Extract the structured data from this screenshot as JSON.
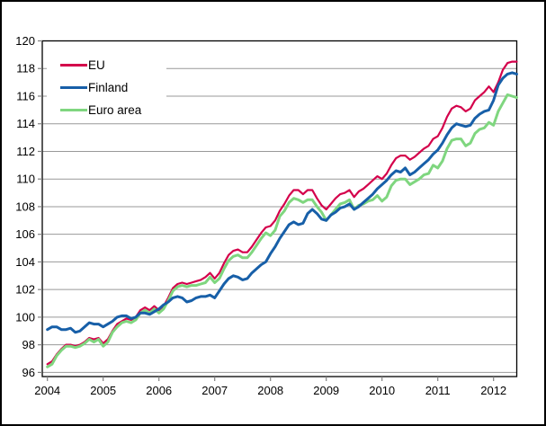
{
  "figure": {
    "background": "#ffffff",
    "border_color": "#000000",
    "gridline_color": "#999999",
    "axis_color": "#000000",
    "tick_color": "#808080"
  },
  "legend": {
    "items": [
      {
        "label": "EU",
        "color": "#d4004b"
      },
      {
        "label": "Finland",
        "color": "#175fa8"
      },
      {
        "label": "Euro area",
        "color": "#7fd67f"
      }
    ]
  },
  "chart_data": {
    "type": "line",
    "frequency": "monthly",
    "x_start": "2004-01",
    "x_end": "2012-06",
    "x_tick_labels": [
      "2004",
      "2005",
      "2006",
      "2007",
      "2008",
      "2009",
      "2010",
      "2011",
      "2012"
    ],
    "y_ticks": [
      96,
      98,
      100,
      102,
      104,
      106,
      108,
      110,
      112,
      114,
      116,
      118,
      120
    ],
    "ylim": [
      95.7,
      120
    ],
    "grid": "horizontal",
    "legend_position": "top-left-inside",
    "series": [
      {
        "name": "EU",
        "color": "#d4004b",
        "values": [
          96.6,
          96.8,
          97.3,
          97.7,
          98.0,
          98.0,
          97.9,
          98.0,
          98.2,
          98.5,
          98.4,
          98.5,
          98.1,
          98.4,
          99.0,
          99.5,
          99.7,
          99.9,
          99.8,
          100.0,
          100.5,
          100.7,
          100.5,
          100.8,
          100.5,
          100.8,
          101.4,
          102.1,
          102.4,
          102.5,
          102.4,
          102.5,
          102.6,
          102.7,
          102.9,
          103.2,
          102.8,
          103.2,
          103.9,
          104.5,
          104.8,
          104.9,
          104.7,
          104.7,
          105.1,
          105.6,
          106.1,
          106.5,
          106.6,
          107.0,
          107.7,
          108.2,
          108.8,
          109.2,
          109.2,
          108.9,
          109.2,
          109.2,
          108.6,
          108.1,
          107.8,
          108.2,
          108.6,
          108.9,
          109.0,
          109.2,
          108.7,
          109.1,
          109.3,
          109.6,
          109.9,
          110.2,
          110.0,
          110.4,
          111.0,
          111.5,
          111.7,
          111.7,
          111.4,
          111.6,
          111.9,
          112.2,
          112.4,
          112.9,
          113.1,
          113.7,
          114.5,
          115.1,
          115.3,
          115.2,
          114.9,
          115.1,
          115.7,
          116.0,
          116.3,
          116.7,
          116.3,
          117.0,
          117.9,
          118.4,
          118.5,
          118.5
        ]
      },
      {
        "name": "Finland",
        "color": "#175fa8",
        "values": [
          99.1,
          99.3,
          99.3,
          99.1,
          99.1,
          99.2,
          98.9,
          99.0,
          99.3,
          99.6,
          99.5,
          99.5,
          99.3,
          99.5,
          99.7,
          100.0,
          100.1,
          100.1,
          99.9,
          100.0,
          100.3,
          100.3,
          100.2,
          100.4,
          100.6,
          100.9,
          101.1,
          101.4,
          101.5,
          101.4,
          101.1,
          101.2,
          101.4,
          101.5,
          101.5,
          101.6,
          101.4,
          101.9,
          102.4,
          102.8,
          103.0,
          102.9,
          102.7,
          102.8,
          103.2,
          103.5,
          103.8,
          104.0,
          104.6,
          105.1,
          105.7,
          106.2,
          106.7,
          106.9,
          106.7,
          106.8,
          107.5,
          107.8,
          107.5,
          107.1,
          107.0,
          107.4,
          107.6,
          107.9,
          108.0,
          108.2,
          107.8,
          108.0,
          108.3,
          108.6,
          108.9,
          109.3,
          109.6,
          109.9,
          110.3,
          110.6,
          110.5,
          110.8,
          110.3,
          110.5,
          110.8,
          111.1,
          111.4,
          111.8,
          112.1,
          112.6,
          113.2,
          113.7,
          114.0,
          113.9,
          113.8,
          113.9,
          114.4,
          114.7,
          114.9,
          115.0,
          115.7,
          116.8,
          117.3,
          117.6,
          117.7,
          117.6
        ]
      },
      {
        "name": "Euro area",
        "color": "#7fd67f",
        "values": [
          96.4,
          96.6,
          97.2,
          97.6,
          97.9,
          97.9,
          97.8,
          97.9,
          98.1,
          98.4,
          98.2,
          98.4,
          97.9,
          98.2,
          98.9,
          99.3,
          99.6,
          99.7,
          99.6,
          99.8,
          100.3,
          100.5,
          100.3,
          100.6,
          100.3,
          100.6,
          101.2,
          101.9,
          102.2,
          102.3,
          102.2,
          102.3,
          102.3,
          102.4,
          102.5,
          102.9,
          102.5,
          102.8,
          103.5,
          104.1,
          104.4,
          104.5,
          104.3,
          104.3,
          104.7,
          105.2,
          105.7,
          106.1,
          105.9,
          106.3,
          107.3,
          107.7,
          108.3,
          108.6,
          108.5,
          108.3,
          108.5,
          108.5,
          108.0,
          107.6,
          107.0,
          107.4,
          107.8,
          108.2,
          108.3,
          108.5,
          107.8,
          108.1,
          108.2,
          108.4,
          108.5,
          108.8,
          108.4,
          108.7,
          109.5,
          109.9,
          110.0,
          110.0,
          109.6,
          109.8,
          110.0,
          110.3,
          110.4,
          111.0,
          110.8,
          111.3,
          112.2,
          112.8,
          112.9,
          112.9,
          112.4,
          112.6,
          113.3,
          113.6,
          113.7,
          114.1,
          113.9,
          114.9,
          115.5,
          116.1,
          116.0,
          115.9
        ]
      }
    ]
  }
}
